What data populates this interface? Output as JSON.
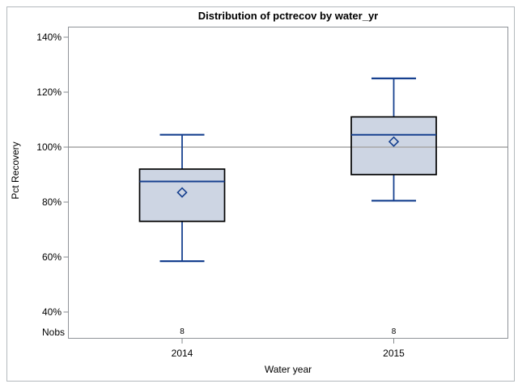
{
  "chart_data": {
    "type": "boxplot",
    "title": "Distribution of pctrecov by water_yr",
    "xlabel": "Water year",
    "ylabel": "Pct Recovery",
    "nobs_row_label": "Nobs",
    "y_axis": {
      "min": 40,
      "max": 140,
      "tick_step": 20,
      "tick_format": "percent",
      "tick_labels_top_to_bottom": [
        "140%",
        "120%",
        "100%",
        "80%",
        "60%",
        "40%"
      ]
    },
    "reference_line_y": 100,
    "grid": "off",
    "legend": "none",
    "categories": [
      "2014",
      "2015"
    ],
    "series": [
      {
        "category": "2014",
        "nobs": "8",
        "min": 58.5,
        "q1": 73,
        "median": 87.5,
        "mean": 83.5,
        "q3": 92,
        "max": 104.5
      },
      {
        "category": "2015",
        "nobs": "8",
        "min": 80.5,
        "q1": 90,
        "median": 104.5,
        "mean": 102,
        "q3": 111,
        "max": 125
      }
    ],
    "colors": {
      "box_fill": "#cdd5e3",
      "box_outline": "#000000",
      "box_lines": "#16408f",
      "mean_marker": "#16408f",
      "reference_line": "#a6a6a6",
      "plot_frame": "#8f9398",
      "axis_ticks": "#85898d",
      "outer_border": "#b4b9bd",
      "text": "#000000"
    }
  }
}
